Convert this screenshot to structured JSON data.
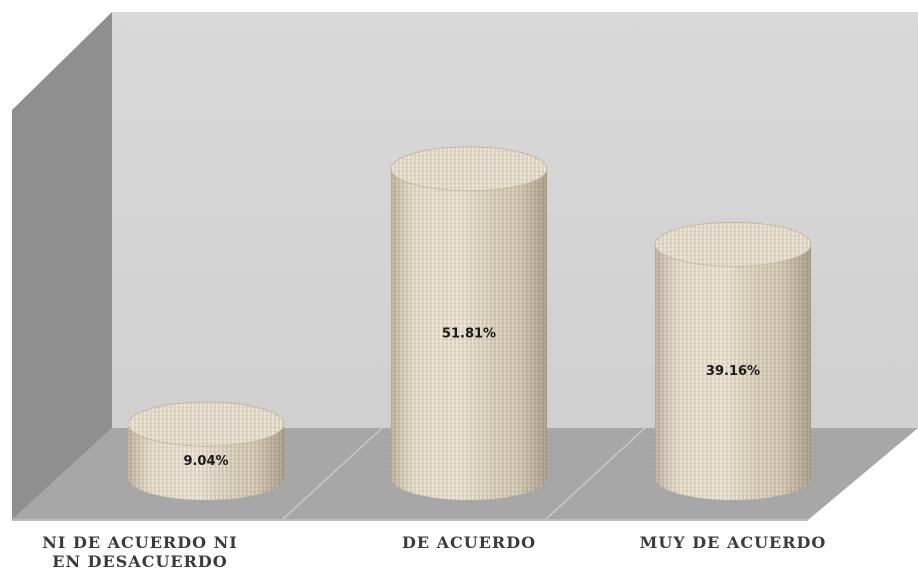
{
  "chart_data": {
    "type": "bar",
    "style": "3d-cylinder",
    "categories": [
      "NI DE ACUERDO NI\nEN DESACUERDO",
      "DE ACUERDO",
      "MUY DE ACUERDO"
    ],
    "values": [
      9.04,
      51.81,
      39.16
    ],
    "data_labels": [
      "9.04%",
      "51.81%",
      "39.16%"
    ],
    "title": "",
    "xlabel": "",
    "ylabel": "",
    "ylim": [
      0,
      60
    ],
    "grid": false,
    "legend": "none",
    "colors": {
      "bar_fill": "#ddd3c0",
      "back_wall": "#d6d6d6",
      "side_wall": "#8f8f8f",
      "floor": "#a6a6a6",
      "floor_front": "#bdbdbd"
    }
  }
}
